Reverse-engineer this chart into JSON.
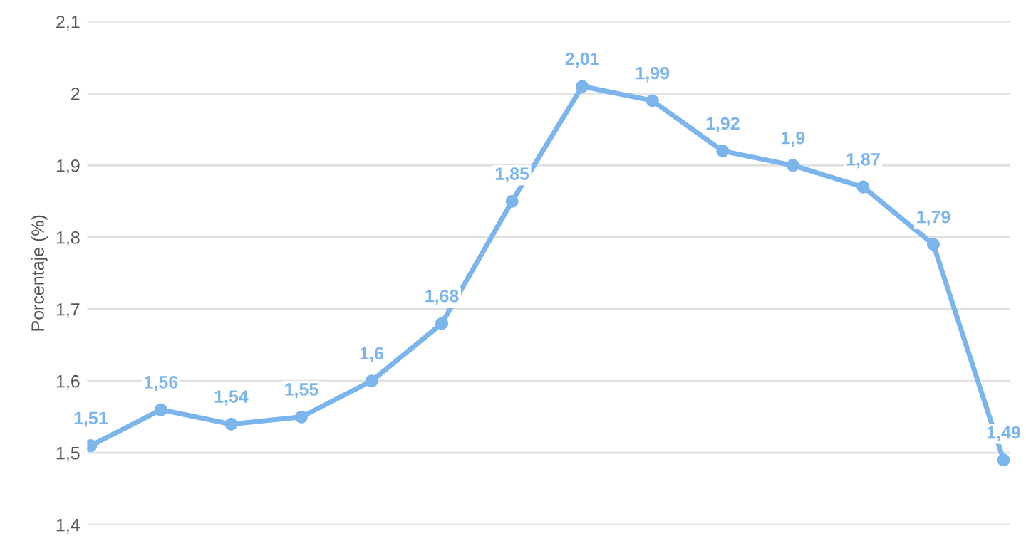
{
  "chart_data": {
    "type": "line",
    "ylabel": "Porcentaje (%)",
    "categories": [
      null,
      null,
      null,
      null,
      null,
      null,
      null,
      null,
      null,
      null,
      null,
      null,
      null,
      null
    ],
    "series": [
      {
        "color": "#7cb5ec",
        "values": [
          1.51,
          1.56,
          1.54,
          1.55,
          1.6,
          1.68,
          1.85,
          2.01,
          1.99,
          1.92,
          1.9,
          1.87,
          1.79,
          1.49
        ],
        "value_labels": [
          "1,51",
          "1,56",
          "1,54",
          "1,55",
          "1,6",
          "1,68",
          "1,85",
          "2,01",
          "1,99",
          "1,92",
          "1,9",
          "1,87",
          "1,79",
          "1,49"
        ]
      }
    ],
    "ylim": [
      1.4,
      2.1
    ],
    "yticks": [
      {
        "value": 1.4,
        "label": "1,4"
      },
      {
        "value": 1.5,
        "label": "1,5"
      },
      {
        "value": 1.6,
        "label": "1,6"
      },
      {
        "value": 1.7,
        "label": "1,7"
      },
      {
        "value": 1.8,
        "label": "1,8"
      },
      {
        "value": 1.9,
        "label": "1,9"
      },
      {
        "value": 2.0,
        "label": "2"
      },
      {
        "value": 2.1,
        "label": "2,1"
      }
    ],
    "grid": "y",
    "marker": "circle",
    "line_style": "solid",
    "tick_labels": "y"
  }
}
